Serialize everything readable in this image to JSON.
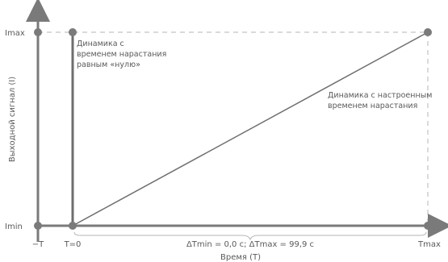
{
  "diagram": {
    "y_axis_label": "Выходной сигнал (I)",
    "x_axis_label": "Время (T)",
    "y_ticks": {
      "max": "Imax",
      "min": "Imin"
    },
    "x_ticks": {
      "neg": "−T",
      "zero": "T=0",
      "max": "Tmax"
    },
    "range_label": "ΔTmin = 0,0 с; ΔTmax = 99,9 с",
    "annotation_zero_ramp": [
      "Динамика с",
      "временем нарастания",
      "равным «нулю»"
    ],
    "annotation_ramp": [
      "Динамика с настроенным",
      "временем нарастания"
    ],
    "colors": {
      "axis": "#7a7a7a",
      "line": "#6e6e6e",
      "dashed": "#b5b5b5",
      "text": "#5a5a5a"
    }
  }
}
